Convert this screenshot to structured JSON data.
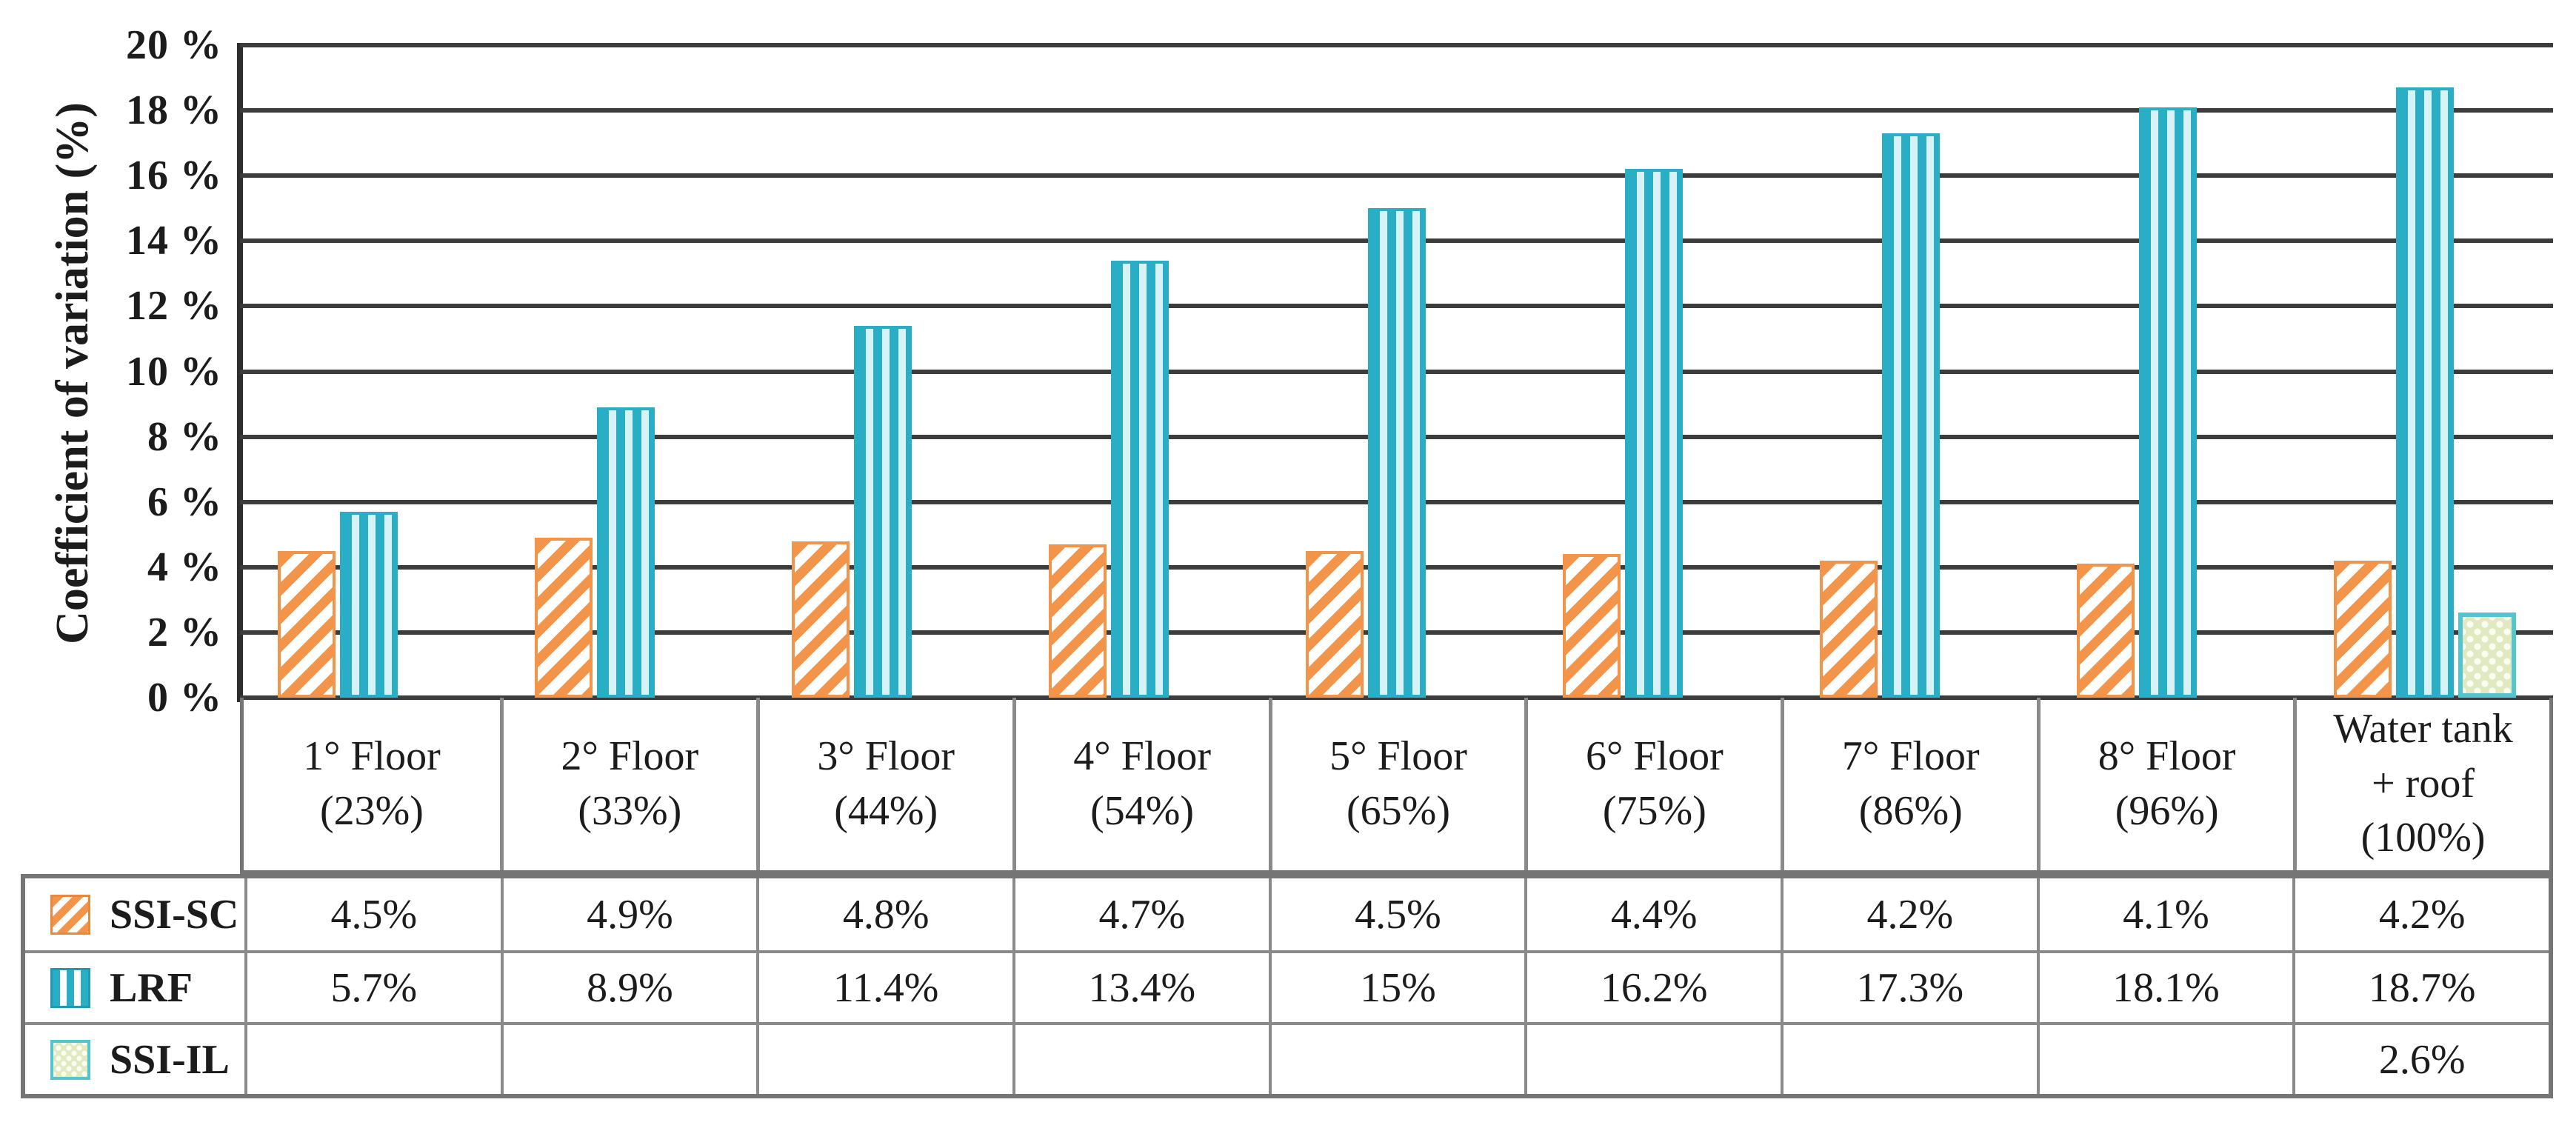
{
  "chart_data": {
    "type": "bar",
    "title": "",
    "ylabel": "Coefficient of variation (%)",
    "xlabel": "",
    "ylim": [
      0,
      20
    ],
    "ytick_step": 2,
    "ytick_labels_top_down": [
      "20 %",
      "18 %",
      "16 %",
      "14 %",
      "12 %",
      "10 %",
      "8 %",
      "6 %",
      "4 %",
      "2 %",
      "0 %"
    ],
    "grid": true,
    "legend_position": "table-left-column",
    "categories": [
      {
        "lines": [
          "1° Floor",
          "(23%)"
        ]
      },
      {
        "lines": [
          "2° Floor",
          "(33%)"
        ]
      },
      {
        "lines": [
          "3° Floor",
          "(44%)"
        ]
      },
      {
        "lines": [
          "4° Floor",
          "(54%)"
        ]
      },
      {
        "lines": [
          "5° Floor",
          "(65%)"
        ]
      },
      {
        "lines": [
          "6° Floor",
          "(75%)"
        ]
      },
      {
        "lines": [
          "7° Floor",
          "(86%)"
        ]
      },
      {
        "lines": [
          "8° Floor",
          "(96%)"
        ]
      },
      {
        "lines": [
          "Water tank",
          "+ roof",
          "(100%)"
        ]
      }
    ],
    "series": [
      {
        "name": "SSI-SC",
        "pattern": "orange-diagonal-stripes",
        "color": "#F2954B",
        "values": [
          4.5,
          4.9,
          4.8,
          4.7,
          4.5,
          4.4,
          4.2,
          4.1,
          4.2
        ],
        "cells": [
          "4.5%",
          "4.9%",
          "4.8%",
          "4.7%",
          "4.5%",
          "4.4%",
          "4.2%",
          "4.1%",
          "4.2%"
        ]
      },
      {
        "name": "LRF",
        "pattern": "teal-vertical-stripes",
        "color": "#29AEC6",
        "color_light": "#D8F3F8",
        "values": [
          5.7,
          8.9,
          11.4,
          13.4,
          15,
          16.2,
          17.3,
          18.1,
          18.7
        ],
        "cells": [
          "5.7%",
          "8.9%",
          "11.4%",
          "13.4%",
          "15%",
          "16.2%",
          "17.3%",
          "18.1%",
          "18.7%"
        ]
      },
      {
        "name": "SSI-IL",
        "pattern": "green-dots",
        "color": "#52C5CE",
        "fill": "#E0E9BF",
        "values": [
          null,
          null,
          null,
          null,
          null,
          null,
          null,
          null,
          2.6
        ],
        "cells": [
          "",
          "",
          "",
          "",
          "",
          "",
          "",
          "",
          "2.6%"
        ]
      }
    ]
  },
  "colors": {
    "gridline": "#3c3c3c",
    "axis_line": "#2e2e2e",
    "table_border": "#8a8a8a",
    "table_border_outer": "#757575",
    "text": "#1c1c1c",
    "background": "#ffffff"
  }
}
